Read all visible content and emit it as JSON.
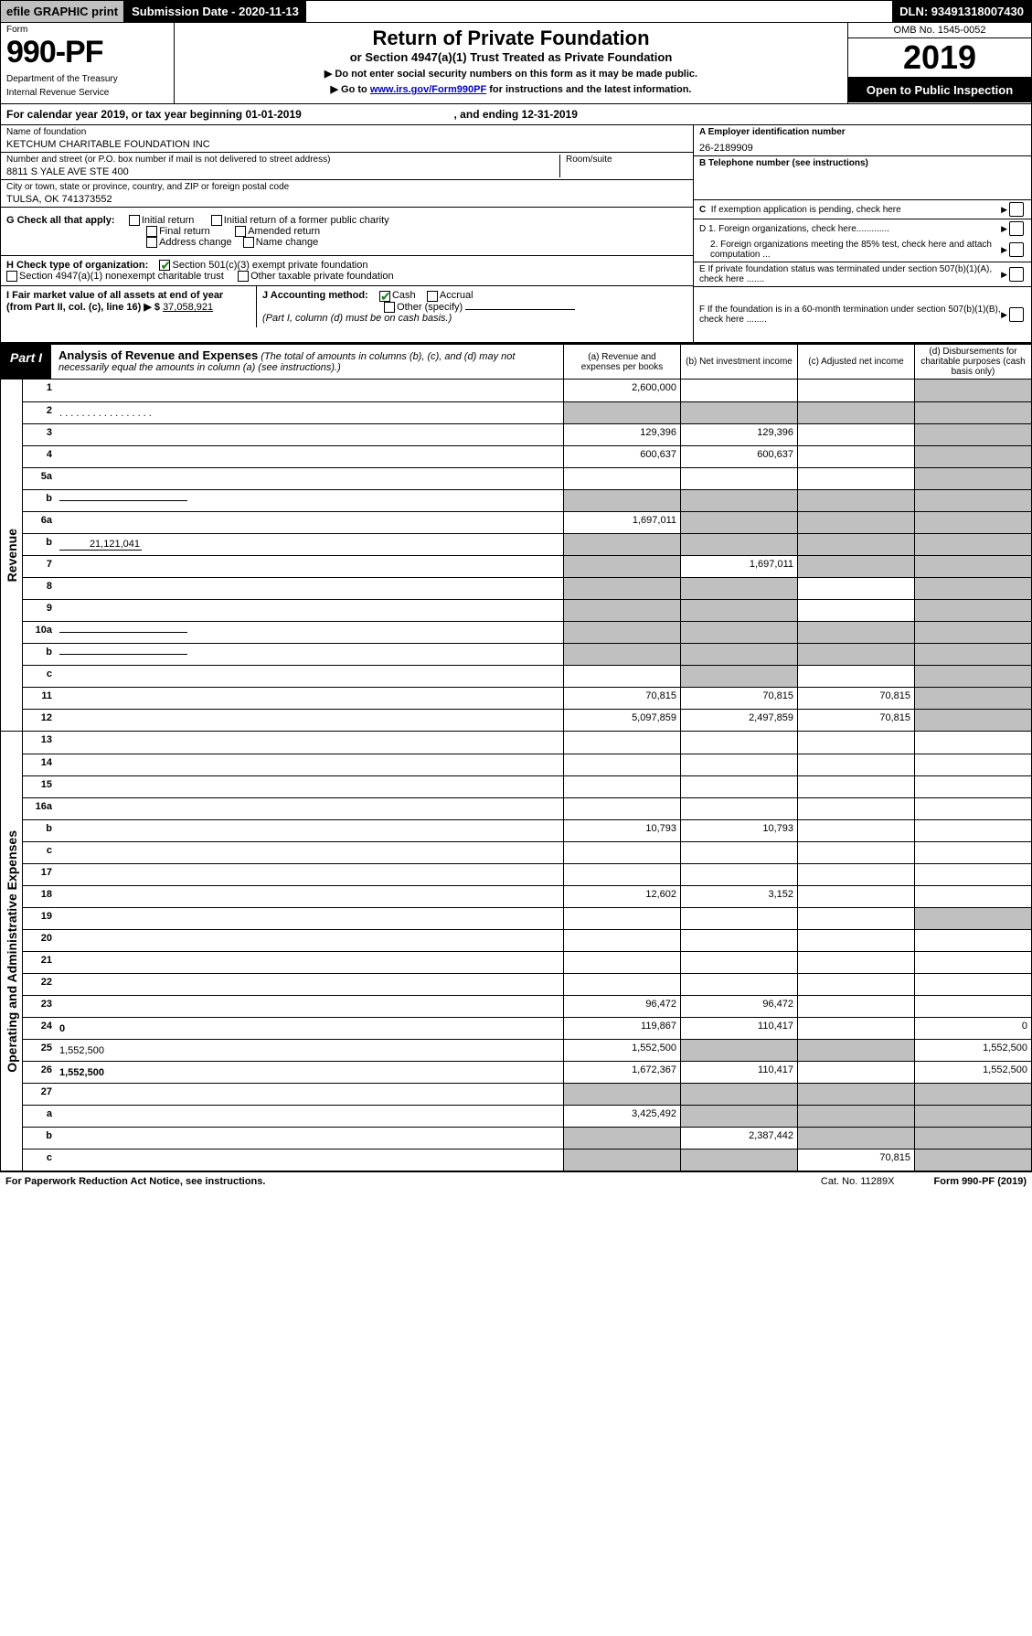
{
  "topbar": {
    "efile": "efile GRAPHIC print",
    "subdate_label": "Submission Date - 2020-11-13",
    "dln": "DLN: 93491318007430"
  },
  "header": {
    "form": "Form",
    "form_num": "990-PF",
    "dept": "Department of the Treasury",
    "irs": "Internal Revenue Service",
    "title": "Return of Private Foundation",
    "subtitle": "or Section 4947(a)(1) Trust Treated as Private Foundation",
    "warn1": "▶ Do not enter social security numbers on this form as it may be made public.",
    "warn2_a": "▶ Go to ",
    "warn2_link": "www.irs.gov/Form990PF",
    "warn2_b": " for instructions and the latest information.",
    "omb": "OMB No. 1545-0052",
    "year": "2019",
    "open": "Open to Public Inspection"
  },
  "cal": {
    "text_a": "For calendar year 2019, or tax year beginning 01-01-2019",
    "text_b": ", and ending 12-31-2019"
  },
  "ident": {
    "name_label": "Name of foundation",
    "name": "KETCHUM CHARITABLE FOUNDATION INC",
    "addr_label": "Number and street (or P.O. box number if mail is not delivered to street address)",
    "addr": "8811 S YALE AVE STE 400",
    "room_label": "Room/suite",
    "city_label": "City or town, state or province, country, and ZIP or foreign postal code",
    "city": "TULSA, OK  741373552",
    "ein_label": "A Employer identification number",
    "ein": "26-2189909",
    "phone_label": "B Telephone number (see instructions)",
    "c_label": "C  If exemption application is pending, check here",
    "d1": "D 1. Foreign organizations, check here.............",
    "d2": "2. Foreign organizations meeting the 85% test, check here and attach computation ...",
    "e_label": "E  If private foundation status was terminated under section 507(b)(1)(A), check here .......",
    "f_label": "F  If the foundation is in a 60-month termination under section 507(b)(1)(B), check here ........"
  },
  "g": {
    "label": "G Check all that apply:",
    "initial": "Initial return",
    "initial_former": "Initial return of a former public charity",
    "final": "Final return",
    "amended": "Amended return",
    "addr_change": "Address change",
    "name_change": "Name change"
  },
  "h": {
    "label": "H Check type of organization:",
    "s501": "Section 501(c)(3) exempt private foundation",
    "s4947": "Section 4947(a)(1) nonexempt charitable trust",
    "other": "Other taxable private foundation"
  },
  "i": {
    "label": "I Fair market value of all assets at end of year (from Part II, col. (c), line 16) ▶ $",
    "value": "37,058,921"
  },
  "j": {
    "label": "J Accounting method:",
    "cash": "Cash",
    "accrual": "Accrual",
    "other": "Other (specify)",
    "note": "(Part I, column (d) must be on cash basis.)"
  },
  "part1": {
    "tag": "Part I",
    "title": "Analysis of Revenue and Expenses",
    "title_note": " (The total of amounts in columns (b), (c), and (d) may not necessarily equal the amounts in column (a) (see instructions).)",
    "col_a": "(a) Revenue and expenses per books",
    "col_b": "(b) Net investment income",
    "col_c": "(c) Adjusted net income",
    "col_d": "(d) Disbursements for charitable purposes (cash basis only)"
  },
  "sides": {
    "revenue": "Revenue",
    "expenses": "Operating and Administrative Expenses"
  },
  "rows": {
    "r1": {
      "n": "1",
      "d": "",
      "a": "2,600,000",
      "b": "",
      "c": "",
      "shade": [
        "d"
      ]
    },
    "r2": {
      "n": "2",
      "d": "",
      "a": "",
      "b": "",
      "c": "",
      "shade": [
        "a",
        "b",
        "c",
        "d"
      ],
      "nobold": true,
      "dots": ". . . . . . . . . . . . . . . . ."
    },
    "r3": {
      "n": "3",
      "d": "",
      "a": "129,396",
      "b": "129,396",
      "c": "",
      "shade": [
        "d"
      ]
    },
    "r4": {
      "n": "4",
      "d": "",
      "a": "600,637",
      "b": "600,637",
      "c": "",
      "shade": [
        "d"
      ]
    },
    "r5a": {
      "n": "5a",
      "d": "",
      "a": "",
      "b": "",
      "c": "",
      "shade": [
        "d"
      ]
    },
    "r5b": {
      "n": "b",
      "d": "",
      "a": "",
      "b": "",
      "c": "",
      "shade": [
        "a",
        "b",
        "c",
        "d"
      ],
      "inline_underline": true
    },
    "r6a": {
      "n": "6a",
      "d": "",
      "a": "1,697,011",
      "b": "",
      "c": "",
      "shade": [
        "b",
        "c",
        "d"
      ]
    },
    "r6b": {
      "n": "b",
      "d": "",
      "inline_val": "21,121,041",
      "a": "",
      "b": "",
      "c": "",
      "shade": [
        "a",
        "b",
        "c",
        "d"
      ]
    },
    "r7": {
      "n": "7",
      "d": "",
      "a": "",
      "b": "1,697,011",
      "c": "",
      "shade": [
        "a",
        "c",
        "d"
      ]
    },
    "r8": {
      "n": "8",
      "d": "",
      "a": "",
      "b": "",
      "c": "",
      "shade": [
        "a",
        "b",
        "d"
      ]
    },
    "r9": {
      "n": "9",
      "d": "",
      "a": "",
      "b": "",
      "c": "",
      "shade": [
        "a",
        "b",
        "d"
      ]
    },
    "r10a": {
      "n": "10a",
      "d": "",
      "a": "",
      "b": "",
      "c": "",
      "shade": [
        "a",
        "b",
        "c",
        "d"
      ],
      "inline_underline": true
    },
    "r10b": {
      "n": "b",
      "d": "",
      "a": "",
      "b": "",
      "c": "",
      "shade": [
        "a",
        "b",
        "c",
        "d"
      ],
      "inline_underline": true
    },
    "r10c": {
      "n": "c",
      "d": "",
      "a": "",
      "b": "",
      "c": "",
      "shade": [
        "b",
        "d"
      ]
    },
    "r11": {
      "n": "11",
      "d": "",
      "a": "70,815",
      "b": "70,815",
      "c": "70,815",
      "shade": [
        "d"
      ]
    },
    "r12": {
      "n": "12",
      "d": "",
      "a": "5,097,859",
      "b": "2,497,859",
      "c": "70,815",
      "shade": [
        "d"
      ],
      "bold": true
    },
    "r13": {
      "n": "13",
      "d": "",
      "a": "",
      "b": "",
      "c": ""
    },
    "r14": {
      "n": "14",
      "d": "",
      "a": "",
      "b": "",
      "c": ""
    },
    "r15": {
      "n": "15",
      "d": "",
      "a": "",
      "b": "",
      "c": ""
    },
    "r16a": {
      "n": "16a",
      "d": "",
      "a": "",
      "b": "",
      "c": ""
    },
    "r16b": {
      "n": "b",
      "d": "",
      "a": "10,793",
      "b": "10,793",
      "c": ""
    },
    "r16c": {
      "n": "c",
      "d": "",
      "a": "",
      "b": "",
      "c": ""
    },
    "r17": {
      "n": "17",
      "d": "",
      "a": "",
      "b": "",
      "c": ""
    },
    "r18": {
      "n": "18",
      "d": "",
      "a": "12,602",
      "b": "3,152",
      "c": ""
    },
    "r19": {
      "n": "19",
      "d": "",
      "a": "",
      "b": "",
      "c": "",
      "shade": [
        "d"
      ]
    },
    "r20": {
      "n": "20",
      "d": "",
      "a": "",
      "b": "",
      "c": ""
    },
    "r21": {
      "n": "21",
      "d": "",
      "a": "",
      "b": "",
      "c": ""
    },
    "r22": {
      "n": "22",
      "d": "",
      "a": "",
      "b": "",
      "c": ""
    },
    "r23": {
      "n": "23",
      "d": "",
      "a": "96,472",
      "b": "96,472",
      "c": ""
    },
    "r24": {
      "n": "24",
      "d": "0",
      "a": "119,867",
      "b": "110,417",
      "c": "",
      "bold": true
    },
    "r25": {
      "n": "25",
      "d": "1,552,500",
      "a": "1,552,500",
      "b": "",
      "c": "",
      "shade": [
        "b",
        "c"
      ]
    },
    "r26": {
      "n": "26",
      "d": "1,552,500",
      "a": "1,672,367",
      "b": "110,417",
      "c": "",
      "bold": true
    },
    "r27": {
      "n": "27",
      "d": "",
      "a": "",
      "b": "",
      "c": "",
      "shade": [
        "a",
        "b",
        "c",
        "d"
      ]
    },
    "r27a": {
      "n": "a",
      "d": "",
      "a": "3,425,492",
      "b": "",
      "c": "",
      "shade": [
        "b",
        "c",
        "d"
      ],
      "bold": true
    },
    "r27b": {
      "n": "b",
      "d": "",
      "a": "",
      "b": "2,387,442",
      "c": "",
      "shade": [
        "a",
        "c",
        "d"
      ],
      "bold": true
    },
    "r27c": {
      "n": "c",
      "d": "",
      "a": "",
      "b": "",
      "c": "70,815",
      "shade": [
        "a",
        "b",
        "d"
      ],
      "bold": true
    }
  },
  "footer": {
    "left": "For Paperwork Reduction Act Notice, see instructions.",
    "mid": "Cat. No. 11289X",
    "right": "Form 990-PF (2019)"
  },
  "colors": {
    "shade": "#c0c0c0",
    "black": "#000000",
    "link": "#0000cc",
    "check": "#1a7f1a"
  }
}
